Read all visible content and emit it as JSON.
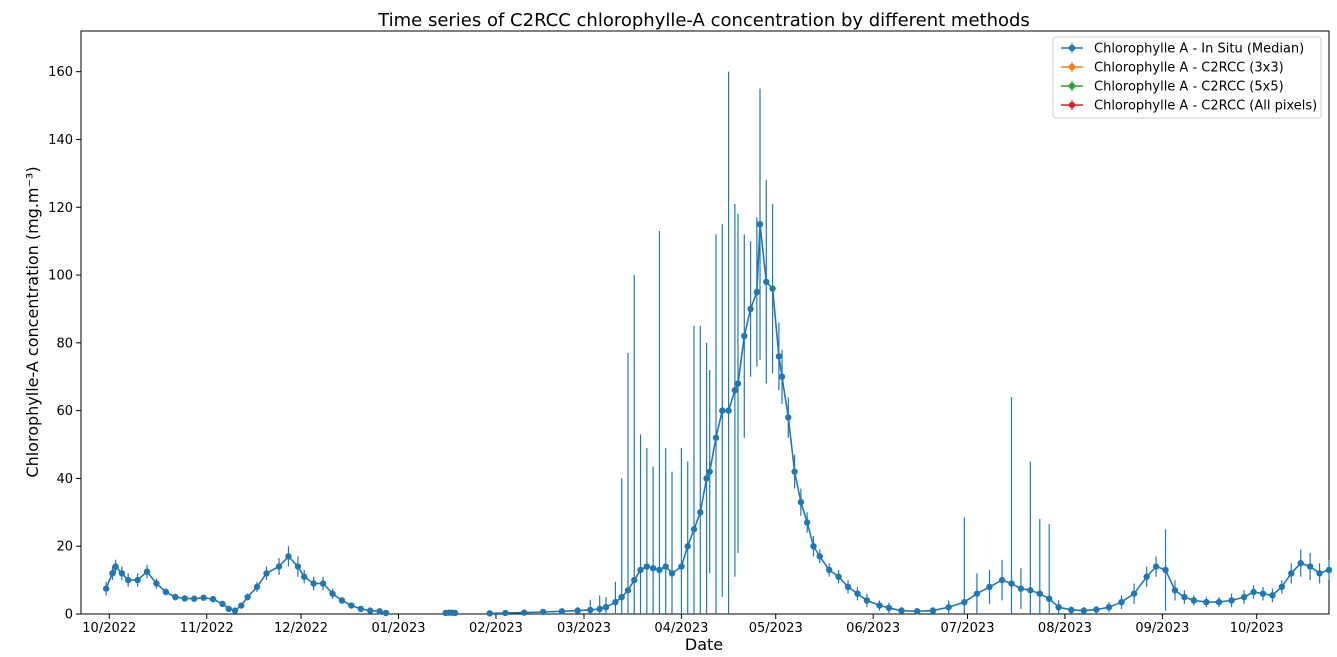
{
  "chart_data": {
    "type": "line",
    "title": "Time series of C2RCC chlorophylle-A concentration by different methods",
    "xlabel": "Date",
    "ylabel": "Chlorophylle-A concentration (mg.m⁻³)",
    "ylim": [
      0,
      172
    ],
    "xlim": [
      "2022-09-22",
      "2023-10-24"
    ],
    "x_ticks": [
      "2022-10-01",
      "2022-11-01",
      "2022-12-01",
      "2023-01-01",
      "2023-02-01",
      "2023-03-01",
      "2023-04-01",
      "2023-05-01",
      "2023-06-01",
      "2023-07-01",
      "2023-08-01",
      "2023-09-01",
      "2023-10-01"
    ],
    "x_tick_labels": [
      "10/2022",
      "11/2022",
      "12/2022",
      "01/2023",
      "02/2023",
      "03/2023",
      "04/2023",
      "05/2023",
      "06/2023",
      "07/2023",
      "08/2023",
      "09/2023",
      "10/2023"
    ],
    "y_ticks": [
      0,
      20,
      40,
      60,
      80,
      100,
      120,
      140,
      160
    ],
    "y_tick_labels": [
      "0",
      "20",
      "40",
      "60",
      "80",
      "100",
      "120",
      "140",
      "160"
    ],
    "grid": false,
    "legend_position": "top-right",
    "series": [
      {
        "name": "Chlorophylle A - In Situ (Median)",
        "color": "#1f77b4",
        "points": [
          {
            "x": "2022-09-30",
            "y": 7.5,
            "err": 2
          },
          {
            "x": "2022-10-02",
            "y": 12,
            "err": 2
          },
          {
            "x": "2022-10-03",
            "y": 14,
            "err": 2
          },
          {
            "x": "2022-10-05",
            "y": 12,
            "err": 2
          },
          {
            "x": "2022-10-07",
            "y": 10,
            "err": 2
          },
          {
            "x": "2022-10-10",
            "y": 10,
            "err": 2
          },
          {
            "x": "2022-10-13",
            "y": 12.5,
            "err": 2
          },
          {
            "x": "2022-10-16",
            "y": 9,
            "err": 1.5
          },
          {
            "x": "2022-10-19",
            "y": 6.5,
            "err": 1
          },
          {
            "x": "2022-10-22",
            "y": 5,
            "err": 1
          },
          {
            "x": "2022-10-25",
            "y": 4.6,
            "err": 0.8
          },
          {
            "x": "2022-10-28",
            "y": 4.5,
            "err": 0.8
          },
          {
            "x": "2022-10-31",
            "y": 4.8,
            "err": 0.8
          },
          {
            "x": "2022-11-03",
            "y": 4.4,
            "err": 0.8
          },
          {
            "x": "2022-11-06",
            "y": 3,
            "err": 0.7
          },
          {
            "x": "2022-11-08",
            "y": 1.5,
            "err": 0.5
          },
          {
            "x": "2022-11-10",
            "y": 1,
            "err": 0.5
          },
          {
            "x": "2022-11-12",
            "y": 2.5,
            "err": 0.7
          },
          {
            "x": "2022-11-14",
            "y": 5,
            "err": 1
          },
          {
            "x": "2022-11-17",
            "y": 8,
            "err": 1.5
          },
          {
            "x": "2022-11-20",
            "y": 12,
            "err": 2
          },
          {
            "x": "2022-11-24",
            "y": 14,
            "err": 2.5
          },
          {
            "x": "2022-11-27",
            "y": 17,
            "err": 3
          },
          {
            "x": "2022-11-30",
            "y": 14,
            "err": 3
          },
          {
            "x": "2022-12-02",
            "y": 11,
            "err": 2
          },
          {
            "x": "2022-12-05",
            "y": 9,
            "err": 2
          },
          {
            "x": "2022-12-08",
            "y": 9,
            "err": 2
          },
          {
            "x": "2022-12-11",
            "y": 6,
            "err": 1.5
          },
          {
            "x": "2022-12-14",
            "y": 4,
            "err": 1
          },
          {
            "x": "2022-12-17",
            "y": 2.5,
            "err": 0.5
          },
          {
            "x": "2022-12-20",
            "y": 1.5,
            "err": 0.4
          },
          {
            "x": "2022-12-23",
            "y": 1,
            "err": 0.3
          },
          {
            "x": "2022-12-26",
            "y": 0.8,
            "err": 0.3
          },
          {
            "x": "2022-12-28",
            "y": 0.3,
            "err": 0.2
          }
        ],
        "points_b": [
          {
            "x": "2023-01-16",
            "y": 0.3,
            "err": 0.4
          },
          {
            "x": "2023-01-17",
            "y": 0.4,
            "err": 0.4
          },
          {
            "x": "2023-01-18",
            "y": 0.4,
            "err": 0.4
          },
          {
            "x": "2023-01-19",
            "y": 0.3,
            "err": 0.3
          }
        ],
        "points_c": [
          {
            "x": "2023-01-30",
            "y": 0.2,
            "err": 0.3
          },
          {
            "x": "2023-02-04",
            "y": 0.3,
            "err": 0.3
          },
          {
            "x": "2023-02-10",
            "y": 0.4,
            "err": 0.3
          },
          {
            "x": "2023-02-16",
            "y": 0.6,
            "err": 0.5
          },
          {
            "x": "2023-02-22",
            "y": 0.8,
            "err": 0.8
          },
          {
            "x": "2023-02-27",
            "y": 1,
            "err": 1
          },
          {
            "x": "2023-03-03",
            "y": 1.2,
            "err": 3
          },
          {
            "x": "2023-03-06",
            "y": 1.5,
            "err": 4
          },
          {
            "x": "2023-03-08",
            "y": 2,
            "err": 3
          },
          {
            "x": "2023-03-11",
            "y": 3.5,
            "err": 6
          },
          {
            "x": "2023-03-13",
            "y": 5,
            "err": 35
          },
          {
            "x": "2023-03-15",
            "y": 7,
            "err": 70
          },
          {
            "x": "2023-03-17",
            "y": 10,
            "err": 90
          },
          {
            "x": "2023-03-19",
            "y": 13,
            "err": 40
          },
          {
            "x": "2023-03-21",
            "y": 14,
            "err": 35
          },
          {
            "x": "2023-03-23",
            "y": 13.5,
            "err": 30
          },
          {
            "x": "2023-03-25",
            "y": 13,
            "err": 100
          },
          {
            "x": "2023-03-27",
            "y": 14,
            "err": 35
          },
          {
            "x": "2023-03-29",
            "y": 12,
            "err": 30
          },
          {
            "x": "2023-04-01",
            "y": 14,
            "err": 35
          },
          {
            "x": "2023-04-03",
            "y": 20,
            "err": 25
          },
          {
            "x": "2023-04-05",
            "y": 25,
            "err": 60
          },
          {
            "x": "2023-04-07",
            "y": 30,
            "err": 55
          },
          {
            "x": "2023-04-09",
            "y": 40,
            "err": 40
          },
          {
            "x": "2023-04-10",
            "y": 42,
            "err": 30
          },
          {
            "x": "2023-04-12",
            "y": 52,
            "err": 60
          },
          {
            "x": "2023-04-14",
            "y": 60,
            "err": 55
          },
          {
            "x": "2023-04-16",
            "y": 60,
            "err": 100
          },
          {
            "x": "2023-04-18",
            "y": 66,
            "err": 55
          },
          {
            "x": "2023-04-19",
            "y": 68,
            "err": 50
          },
          {
            "x": "2023-04-21",
            "y": 82,
            "err": 30
          },
          {
            "x": "2023-04-23",
            "y": 90,
            "err": 20
          },
          {
            "x": "2023-04-25",
            "y": 95,
            "err": 22
          },
          {
            "x": "2023-04-26",
            "y": 115,
            "err": 40
          },
          {
            "x": "2023-04-28",
            "y": 98,
            "err": 30
          },
          {
            "x": "2023-04-30",
            "y": 96,
            "err": 25
          },
          {
            "x": "2023-05-02",
            "y": 76,
            "err": 10
          },
          {
            "x": "2023-05-03",
            "y": 70,
            "err": 8
          },
          {
            "x": "2023-05-05",
            "y": 58,
            "err": 6
          },
          {
            "x": "2023-05-07",
            "y": 42,
            "err": 5
          },
          {
            "x": "2023-05-09",
            "y": 33,
            "err": 4
          },
          {
            "x": "2023-05-11",
            "y": 27,
            "err": 3
          },
          {
            "x": "2023-05-13",
            "y": 20,
            "err": 3
          },
          {
            "x": "2023-05-15",
            "y": 17,
            "err": 2
          },
          {
            "x": "2023-05-18",
            "y": 13,
            "err": 2
          },
          {
            "x": "2023-05-21",
            "y": 11,
            "err": 2
          },
          {
            "x": "2023-05-24",
            "y": 8,
            "err": 2
          },
          {
            "x": "2023-05-27",
            "y": 6,
            "err": 2
          },
          {
            "x": "2023-05-30",
            "y": 4,
            "err": 2
          },
          {
            "x": "2023-06-03",
            "y": 2.5,
            "err": 1.5
          },
          {
            "x": "2023-06-06",
            "y": 1.8,
            "err": 1.5
          },
          {
            "x": "2023-06-10",
            "y": 1,
            "err": 1
          },
          {
            "x": "2023-06-15",
            "y": 0.8,
            "err": 1
          },
          {
            "x": "2023-06-20",
            "y": 1,
            "err": 1
          },
          {
            "x": "2023-06-25",
            "y": 2,
            "err": 2
          },
          {
            "x": "2023-06-30",
            "y": 3.5,
            "err": 25
          },
          {
            "x": "2023-07-04",
            "y": 6,
            "err": 6
          },
          {
            "x": "2023-07-08",
            "y": 8,
            "err": 5
          },
          {
            "x": "2023-07-12",
            "y": 10,
            "err": 6
          },
          {
            "x": "2023-07-15",
            "y": 9,
            "err": 55
          },
          {
            "x": "2023-07-18",
            "y": 7.5,
            "err": 6
          },
          {
            "x": "2023-07-21",
            "y": 7,
            "err": 38
          },
          {
            "x": "2023-07-24",
            "y": 6,
            "err": 22
          },
          {
            "x": "2023-07-27",
            "y": 4.5,
            "err": 22
          },
          {
            "x": "2023-07-30",
            "y": 2,
            "err": 2
          },
          {
            "x": "2023-08-03",
            "y": 1.2,
            "err": 1
          },
          {
            "x": "2023-08-07",
            "y": 1,
            "err": 1
          },
          {
            "x": "2023-08-11",
            "y": 1.3,
            "err": 1
          },
          {
            "x": "2023-08-15",
            "y": 2,
            "err": 1.5
          },
          {
            "x": "2023-08-19",
            "y": 3.5,
            "err": 2
          },
          {
            "x": "2023-08-23",
            "y": 6,
            "err": 3
          },
          {
            "x": "2023-08-27",
            "y": 11,
            "err": 3
          },
          {
            "x": "2023-08-30",
            "y": 14,
            "err": 3
          },
          {
            "x": "2023-09-02",
            "y": 13,
            "err": 12
          },
          {
            "x": "2023-09-05",
            "y": 7,
            "err": 3
          },
          {
            "x": "2023-09-08",
            "y": 5,
            "err": 2
          },
          {
            "x": "2023-09-11",
            "y": 4,
            "err": 1.5
          },
          {
            "x": "2023-09-15",
            "y": 3.5,
            "err": 1.5
          },
          {
            "x": "2023-09-19",
            "y": 3.5,
            "err": 1.5
          },
          {
            "x": "2023-09-23",
            "y": 4,
            "err": 2
          },
          {
            "x": "2023-09-27",
            "y": 5,
            "err": 2
          },
          {
            "x": "2023-09-30",
            "y": 6.5,
            "err": 2
          },
          {
            "x": "2023-10-03",
            "y": 6,
            "err": 2
          },
          {
            "x": "2023-10-06",
            "y": 5.5,
            "err": 2
          },
          {
            "x": "2023-10-09",
            "y": 8,
            "err": 2
          },
          {
            "x": "2023-10-12",
            "y": 12,
            "err": 3
          },
          {
            "x": "2023-10-15",
            "y": 15,
            "err": 4
          },
          {
            "x": "2023-10-18",
            "y": 14,
            "err": 4
          },
          {
            "x": "2023-10-21",
            "y": 12,
            "err": 3
          },
          {
            "x": "2023-10-24",
            "y": 13,
            "err": 3
          }
        ]
      },
      {
        "name": "Chlorophylle A - C2RCC (3x3)",
        "color": "#ff7f0e",
        "points": []
      },
      {
        "name": "Chlorophylle A - C2RCC (5x5)",
        "color": "#2ca02c",
        "points": []
      },
      {
        "name": "Chlorophylle A - C2RCC (All pixels)",
        "color": "#d62728",
        "points": []
      }
    ]
  }
}
